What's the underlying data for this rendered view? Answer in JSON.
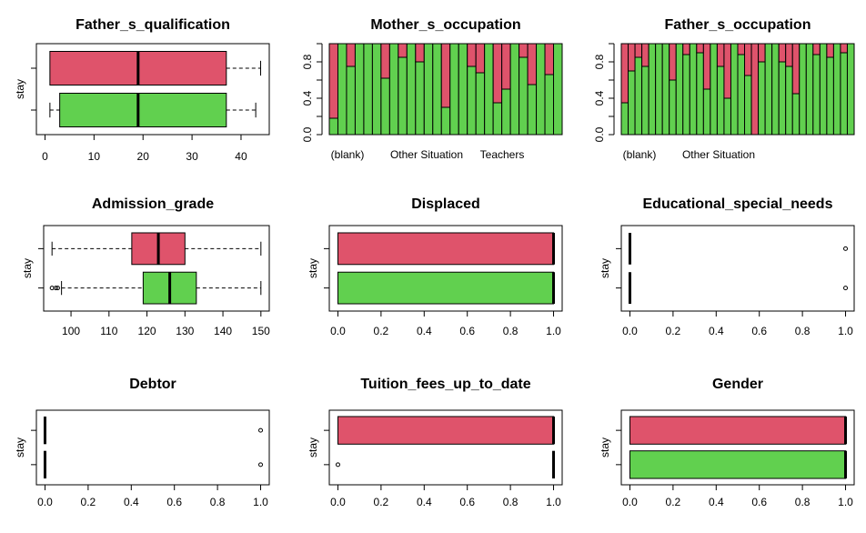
{
  "chart_data": [
    {
      "type": "boxplot",
      "title": "Father_s_qualification",
      "ylabel": "stay",
      "xlim": [
        0,
        44
      ],
      "xticks": [
        0,
        10,
        20,
        30,
        40
      ],
      "boxes": [
        {
          "color": "#df536b",
          "q1": 1,
          "median": 19,
          "q3": 37,
          "whisker_low": 1,
          "whisker_high": 44,
          "outliers": []
        },
        {
          "color": "#61d04f",
          "q1": 3,
          "median": 19,
          "q3": 37,
          "whisker_low": 1,
          "whisker_high": 43,
          "outliers": []
        }
      ]
    },
    {
      "type": "stacked_bar",
      "title": "Mother_s_occupation",
      "ylim": [
        0,
        1
      ],
      "yticks": [
        "0.0",
        "0.4",
        "0.8"
      ],
      "xlabels": [
        "(blank)",
        "Other Situation",
        "Teachers"
      ],
      "colors": {
        "bottom": "#61d04f",
        "top": "#df536b"
      },
      "green_fractions": [
        0.18,
        1,
        0.75,
        1,
        1,
        1,
        0.62,
        1,
        0.85,
        1,
        0.8,
        1,
        1,
        0.3,
        1,
        1,
        0.75,
        0.68,
        1,
        0.35,
        0.5,
        1,
        0.85,
        0.55,
        1,
        0.66,
        1
      ]
    },
    {
      "type": "stacked_bar",
      "title": "Father_s_occupation",
      "ylim": [
        0,
        1
      ],
      "yticks": [
        "0.0",
        "0.4",
        "0.8"
      ],
      "xlabels": [
        "(blank)",
        "Other Situation"
      ],
      "colors": {
        "bottom": "#61d04f",
        "top": "#df536b"
      },
      "green_fractions": [
        0.35,
        0.7,
        0.85,
        0.75,
        1,
        1,
        1,
        0.6,
        1,
        0.88,
        1,
        0.9,
        0.5,
        1,
        0.75,
        0.4,
        1,
        0.88,
        0.65,
        0,
        0.8,
        1,
        1,
        0.8,
        0.75,
        0.45,
        1,
        1,
        0.88,
        1,
        0.85,
        1,
        0.9,
        1
      ]
    },
    {
      "type": "boxplot",
      "title": "Admission_grade",
      "ylabel": "stay",
      "xlim": [
        95,
        150
      ],
      "xticks": [
        100,
        110,
        120,
        130,
        140,
        150
      ],
      "boxes": [
        {
          "color": "#df536b",
          "q1": 116,
          "median": 123,
          "q3": 130,
          "whisker_low": 95,
          "whisker_high": 150,
          "outliers": []
        },
        {
          "color": "#61d04f",
          "q1": 119,
          "median": 126,
          "q3": 133,
          "whisker_low": 97.5,
          "whisker_high": 150,
          "outliers": [
            95,
            96,
            96.5
          ]
        }
      ]
    },
    {
      "type": "boxplot",
      "title": "Displaced",
      "ylabel": "stay",
      "xlim": [
        0,
        1
      ],
      "xticks": [
        "0.0",
        "0.2",
        "0.4",
        "0.6",
        "0.8",
        "1.0"
      ],
      "boxes": [
        {
          "color": "#df536b",
          "q1": 0,
          "median": 1,
          "q3": 1,
          "whisker_low": 0,
          "whisker_high": 1,
          "outliers": []
        },
        {
          "color": "#61d04f",
          "q1": 0,
          "median": 1,
          "q3": 1,
          "whisker_low": 0,
          "whisker_high": 1,
          "outliers": []
        }
      ]
    },
    {
      "type": "boxplot",
      "title": "Educational_special_needs",
      "ylabel": "stay",
      "xlim": [
        0,
        1
      ],
      "xticks": [
        "0.0",
        "0.2",
        "0.4",
        "0.6",
        "0.8",
        "1.0"
      ],
      "boxes": [
        {
          "color": "#df536b",
          "q1": 0,
          "median": 0,
          "q3": 0,
          "whisker_low": 0,
          "whisker_high": 0,
          "outliers": [
            1
          ]
        },
        {
          "color": "#61d04f",
          "q1": 0,
          "median": 0,
          "q3": 0,
          "whisker_low": 0,
          "whisker_high": 0,
          "outliers": [
            1
          ]
        }
      ]
    },
    {
      "type": "boxplot",
      "title": "Debtor",
      "ylabel": "stay",
      "xlim": [
        0,
        1
      ],
      "xticks": [
        "0.0",
        "0.2",
        "0.4",
        "0.6",
        "0.8",
        "1.0"
      ],
      "boxes": [
        {
          "color": "#df536b",
          "q1": 0,
          "median": 0,
          "q3": 0,
          "whisker_low": 0,
          "whisker_high": 0,
          "outliers": [
            1
          ]
        },
        {
          "color": "#61d04f",
          "q1": 0,
          "median": 0,
          "q3": 0,
          "whisker_low": 0,
          "whisker_high": 0,
          "outliers": [
            1
          ]
        }
      ]
    },
    {
      "type": "boxplot",
      "title": "Tuition_fees_up_to_date",
      "ylabel": "stay",
      "xlim": [
        0,
        1
      ],
      "xticks": [
        "0.0",
        "0.2",
        "0.4",
        "0.6",
        "0.8",
        "1.0"
      ],
      "boxes": [
        {
          "color": "#df536b",
          "q1": 0,
          "median": 1,
          "q3": 1,
          "whisker_low": 0,
          "whisker_high": 1,
          "outliers": []
        },
        {
          "color": "#61d04f",
          "q1": 1,
          "median": 1,
          "q3": 1,
          "whisker_low": 1,
          "whisker_high": 1,
          "outliers": [
            0
          ]
        }
      ]
    },
    {
      "type": "boxplot",
      "title": "Gender",
      "ylabel": "stay",
      "xlim": [
        0,
        1
      ],
      "xticks": [
        "0.0",
        "0.2",
        "0.4",
        "0.6",
        "0.8",
        "1.0"
      ],
      "boxes": [
        {
          "color": "#df536b",
          "q1": 0,
          "median": 1,
          "q3": 1,
          "whisker_low": 0,
          "whisker_high": 1,
          "outliers": []
        },
        {
          "color": "#61d04f",
          "q1": 0,
          "median": 1,
          "q3": 1,
          "whisker_low": 0,
          "whisker_high": 1,
          "outliers": []
        }
      ]
    }
  ]
}
